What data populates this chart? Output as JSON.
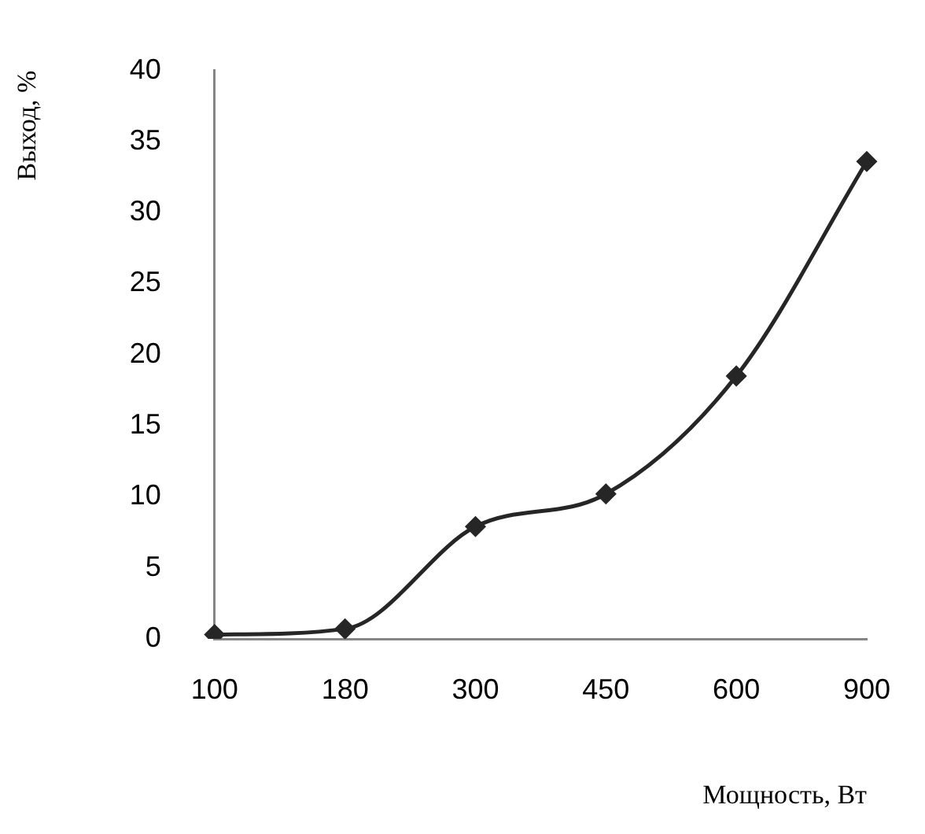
{
  "chart_data": {
    "type": "line",
    "xlabel": "Мощность, Вт",
    "ylabel": "Выход, %",
    "categories": [
      "100",
      "180",
      "300",
      "450",
      "600",
      "900"
    ],
    "series": [
      {
        "color": "#262626",
        "values": [
          0.3,
          0.7,
          7.9,
          10.2,
          18.5,
          33.6
        ]
      }
    ],
    "ylim": [
      0,
      40
    ],
    "yticks": [
      0,
      5,
      10,
      15,
      20,
      25,
      30,
      35,
      40
    ],
    "grid": false,
    "legend": false,
    "marker": "diamond",
    "line_style": "solid"
  }
}
